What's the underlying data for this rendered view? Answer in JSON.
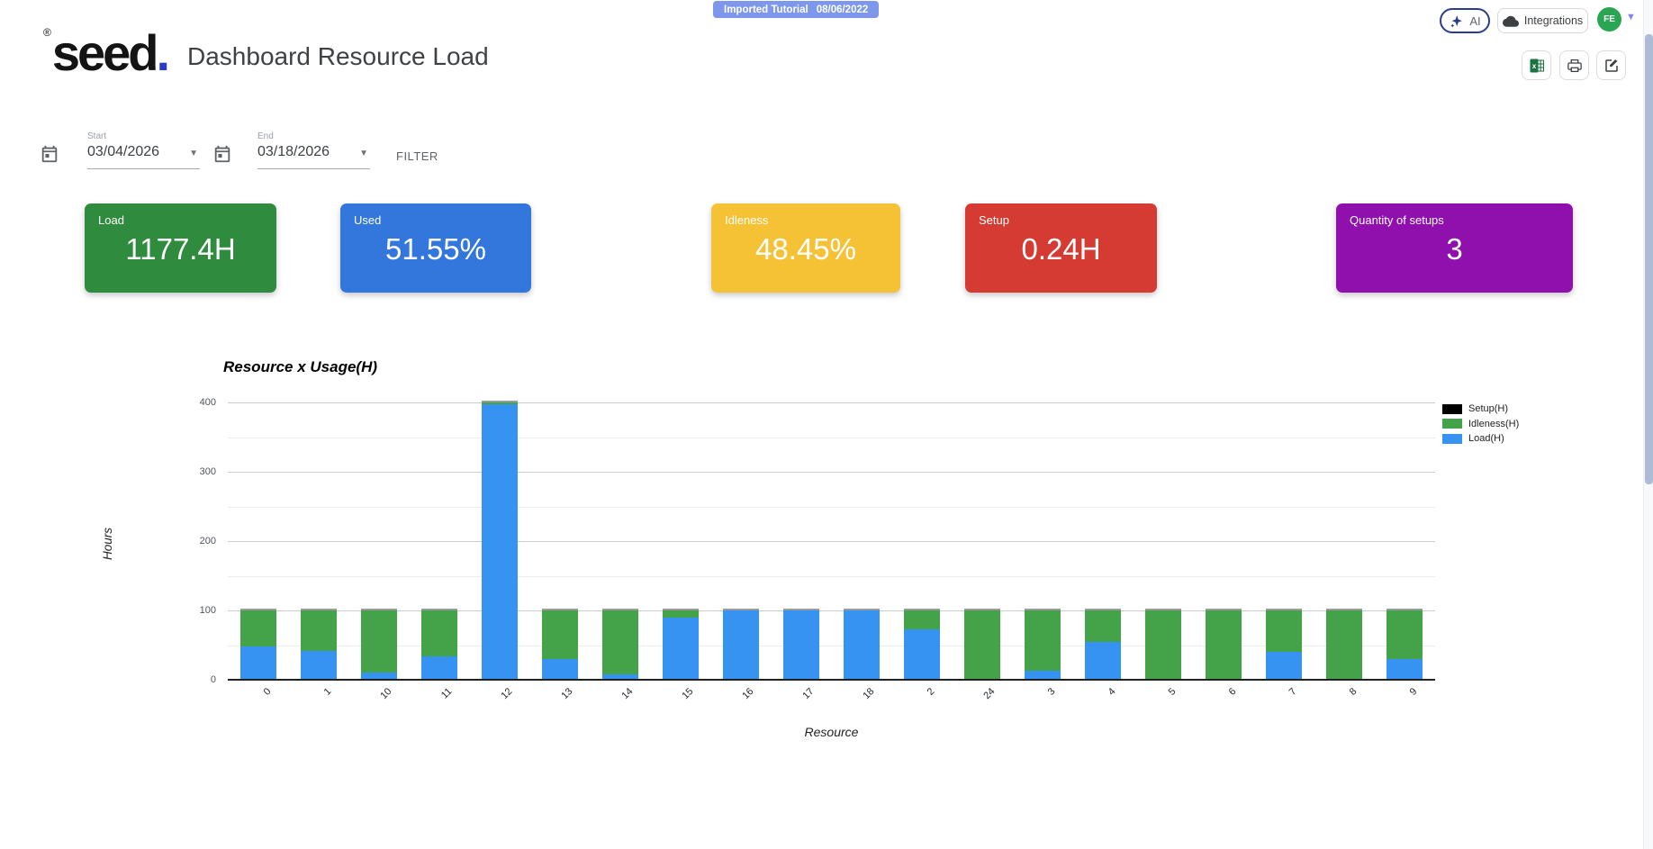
{
  "badge": {
    "label": "Imported Tutorial",
    "date": "08/06/2022",
    "bg": "#7d97ed"
  },
  "topbar": {
    "ai_label": "AI",
    "integrations_label": "Integrations",
    "avatar_initials": "FE",
    "avatar_color": "#2aa653",
    "caret_glyph": "▼"
  },
  "header": {
    "logo_text": "seed",
    "logo_dot": ".",
    "trademark": "®",
    "title": "Dashboard Resource Load"
  },
  "filters": {
    "start_label": "Start",
    "start_value": "03/04/2026",
    "end_label": "End",
    "end_value": "03/18/2026",
    "caret_glyph": "▼",
    "filter_button": "FILTER"
  },
  "kpis": [
    {
      "label": "Load",
      "value": "1177.4H",
      "color": "#2f8b3d"
    },
    {
      "label": "Used",
      "value": "51.55%",
      "color": "#3377dd"
    },
    {
      "label": "Idleness",
      "value": "48.45%",
      "color": "#f5c235"
    },
    {
      "label": "Setup",
      "value": "0.24H",
      "color": "#d53a33"
    },
    {
      "label": "Quantity of setups",
      "value": "3",
      "color": "#8f10ad"
    }
  ],
  "chart_data": {
    "type": "bar",
    "stacked": true,
    "title": "Resource x Usage(H)",
    "xlabel": "Resource",
    "ylabel": "Hours",
    "ylim": [
      0,
      400
    ],
    "yticks": [
      0,
      100,
      200,
      300,
      400
    ],
    "grid": true,
    "legend_position": "right",
    "categories": [
      "0",
      "1",
      "10",
      "11",
      "12",
      "13",
      "14",
      "15",
      "16",
      "17",
      "18",
      "2",
      "24",
      "3",
      "4",
      "5",
      "6",
      "7",
      "8",
      "9"
    ],
    "series": [
      {
        "name": "Setup(H)",
        "color": "#000000",
        "values": [
          0,
          0,
          0,
          0,
          0,
          0,
          0,
          0,
          0,
          0,
          0,
          0,
          0,
          0,
          0,
          0,
          0,
          0,
          0,
          0
        ]
      },
      {
        "name": "Idleness(H)",
        "color": "#44a248",
        "values": [
          52,
          59,
          90,
          66,
          3,
          70,
          92,
          11,
          0,
          0,
          0,
          27,
          100,
          87,
          45,
          100,
          100,
          60,
          100,
          70
        ]
      },
      {
        "name": "Load(H)",
        "color": "#3693f2",
        "values": [
          48,
          41,
          10,
          34,
          397,
          30,
          8,
          89,
          100,
          100,
          100,
          73,
          0,
          13,
          55,
          0,
          0,
          40,
          0,
          30
        ]
      }
    ]
  }
}
